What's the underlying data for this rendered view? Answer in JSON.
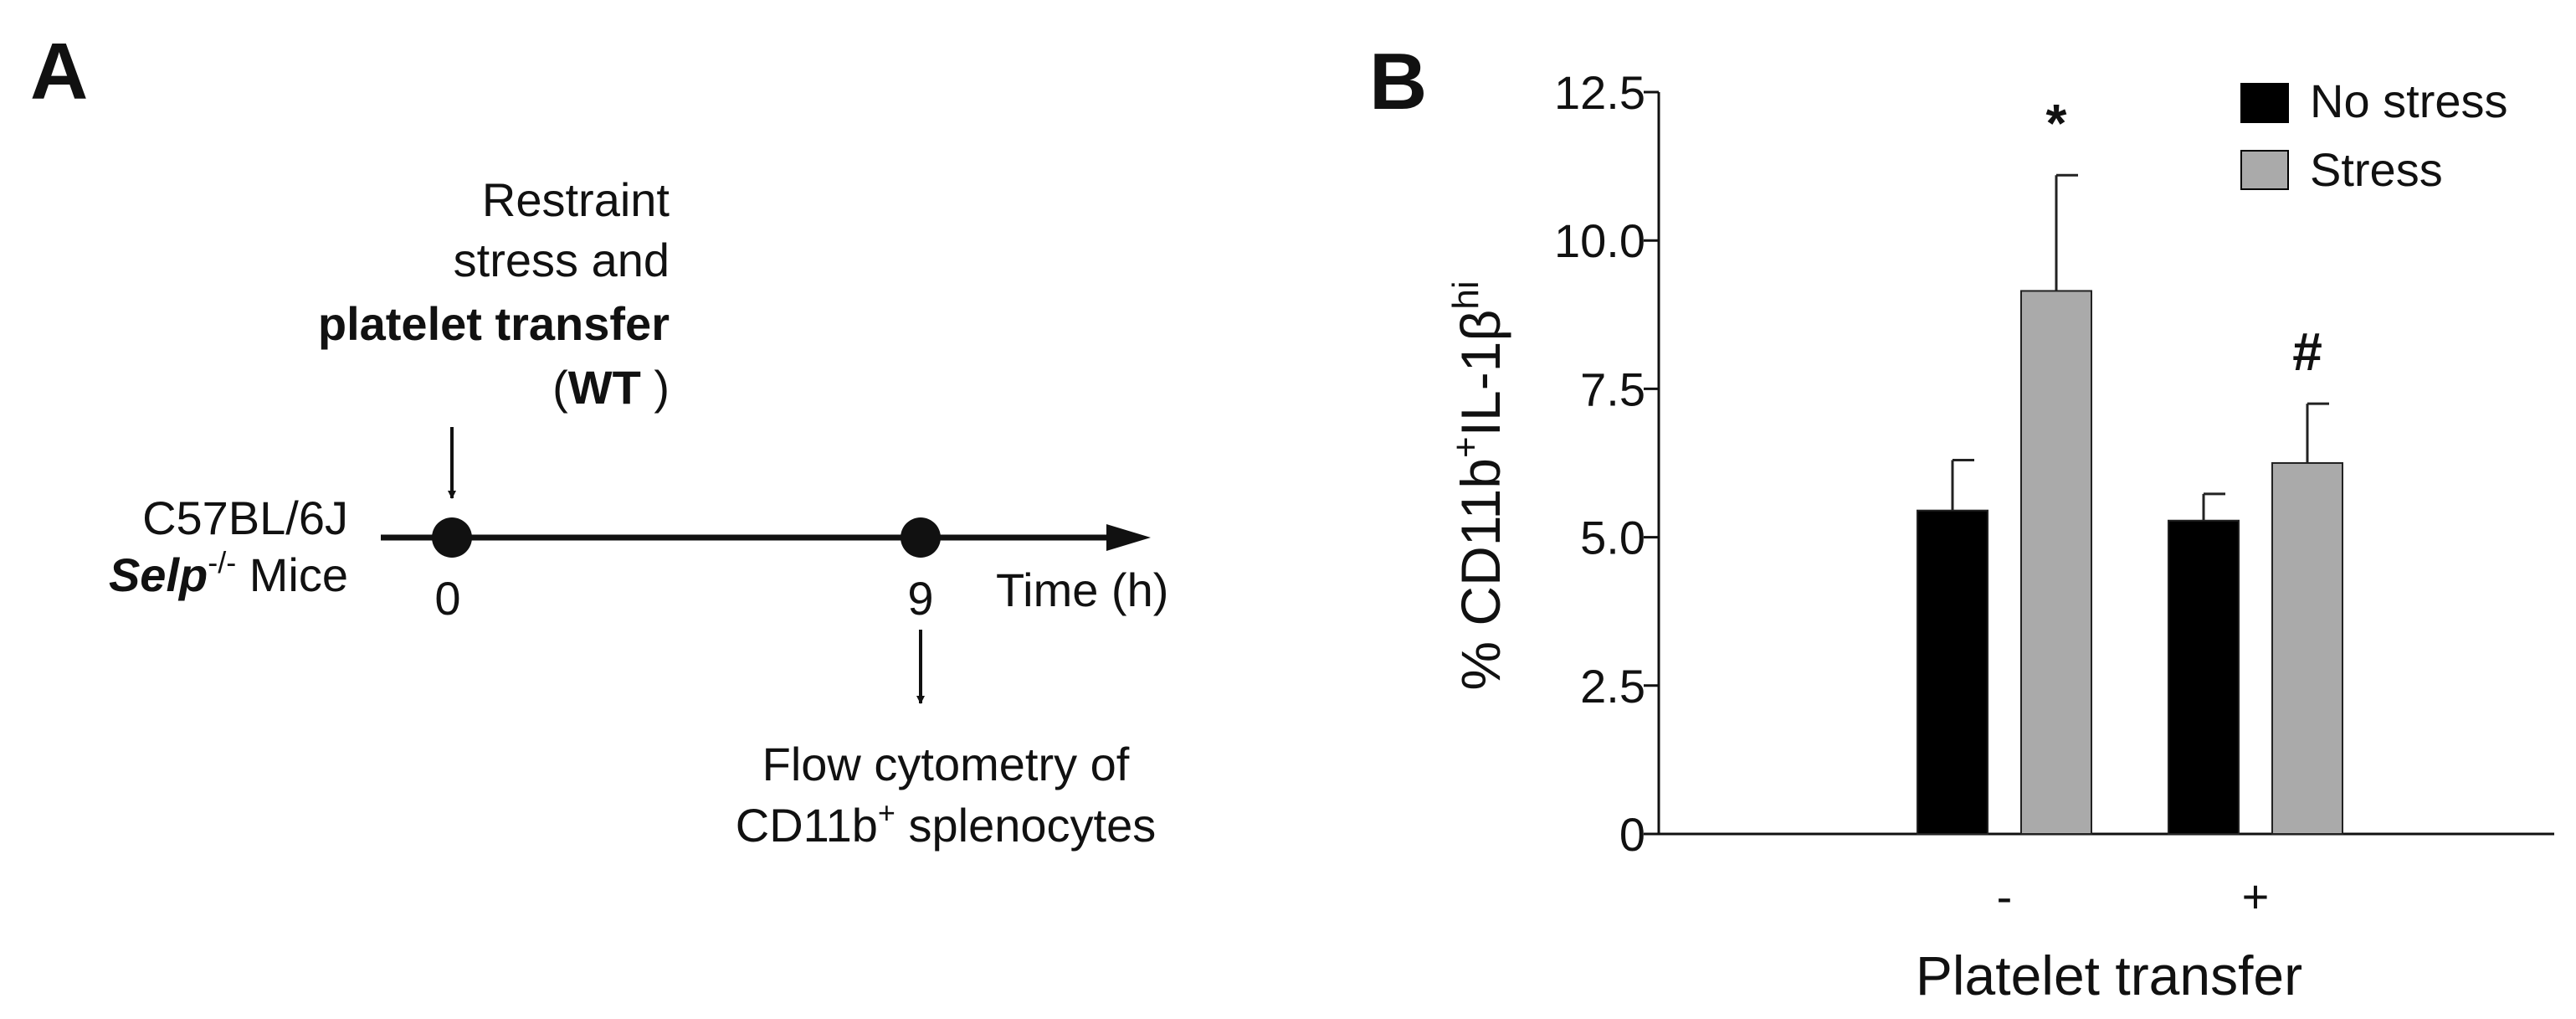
{
  "panel_a": {
    "letter": "A",
    "event_start": {
      "line1": "Restraint",
      "line2": "stress and",
      "line3": "platelet transfer",
      "line4_open": "(",
      "line4_bold": "WT",
      "line4_close": " )"
    },
    "mice": {
      "strain": "C57BL/6J",
      "genotype": "Selp",
      "genotype_sup": "-/-",
      "suffix": " Mice"
    },
    "timeline": {
      "point0": "0",
      "point9": "9",
      "axis_label": "Time (h)"
    },
    "event_end": {
      "line1": "Flow cytometry of",
      "line2_pre": "CD11b",
      "line2_sup": "+",
      "line2_post": " splenocytes"
    }
  },
  "panel_b": {
    "letter": "B"
  },
  "chart_data": {
    "type": "bar",
    "categories": [
      "-",
      "+"
    ],
    "xlabel": "Platelet transfer",
    "ylabel": {
      "prefix": "% CD11b",
      "sup1": "+",
      "mid": "IL-1β",
      "sup2": "hi"
    },
    "ylim": [
      0,
      12.5
    ],
    "yticks": [
      "0",
      "2.5",
      "5.0",
      "7.5",
      "10.0",
      "12.5"
    ],
    "legend_position": "top-right",
    "series": [
      {
        "name": "No stress",
        "color": "#000000",
        "values": [
          5.45,
          5.28
        ],
        "errors": [
          0.85,
          0.45
        ]
      },
      {
        "name": "Stress",
        "color": "#aaaaaa",
        "values": [
          9.15,
          6.25
        ],
        "errors": [
          1.95,
          1.0
        ]
      }
    ],
    "annotations": [
      {
        "series": 1,
        "category": 0,
        "text": "*"
      },
      {
        "series": 1,
        "category": 1,
        "text": "#"
      }
    ]
  }
}
